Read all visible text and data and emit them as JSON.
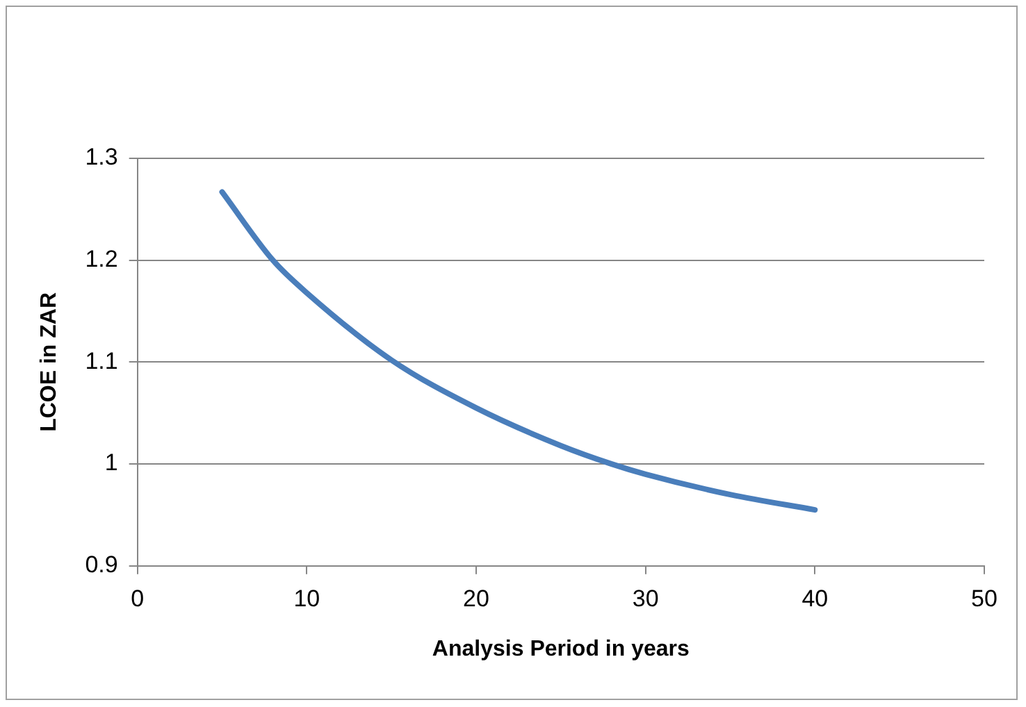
{
  "chart_data": {
    "type": "line",
    "xlabel": "Analysis Period in years",
    "ylabel": "LCOE in ZAR",
    "x": [
      5,
      8,
      10,
      15,
      20,
      25,
      28,
      30,
      35,
      40
    ],
    "series": [
      {
        "color": "#4a7ebb",
        "values": [
          1.267,
          1.2,
          1.168,
          1.102,
          1.055,
          1.018,
          1.0,
          0.99,
          0.97,
          0.955
        ]
      }
    ],
    "xlim": [
      0,
      50
    ],
    "xticks": [
      0,
      10,
      20,
      30,
      40,
      50
    ],
    "ylim": [
      0.9,
      1.3
    ],
    "yticks": [
      0.9,
      1,
      1.1,
      1.2,
      1.3
    ],
    "grid": "y",
    "legend": false,
    "marker": "none",
    "line_style": "solid"
  }
}
